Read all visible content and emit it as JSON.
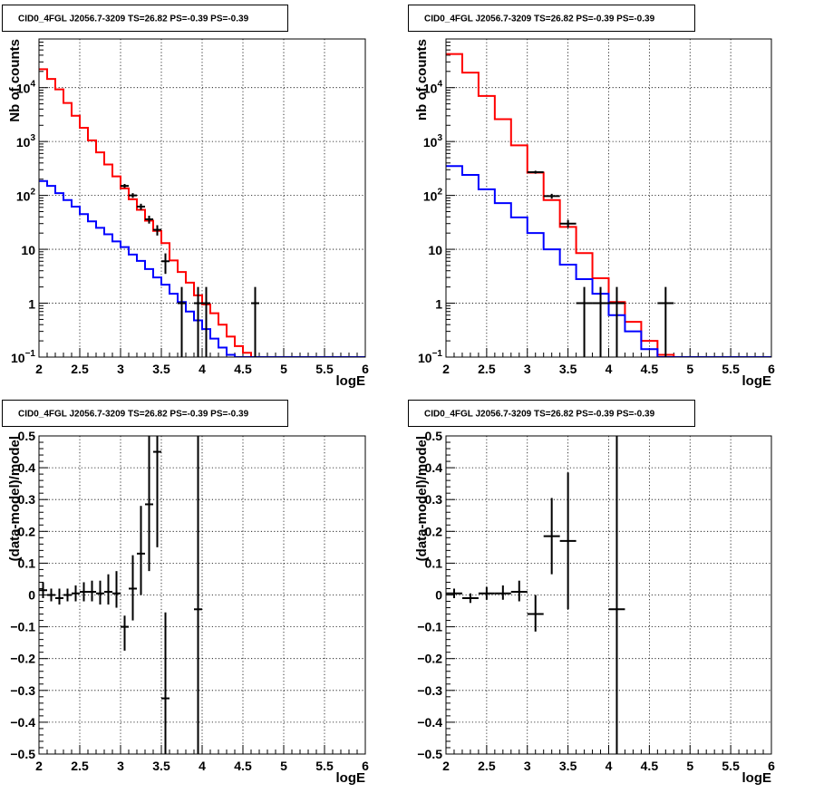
{
  "colors": {
    "model_total": "#ff0000",
    "model_background": "#0000ff",
    "data": "#000000",
    "grid": "#000000",
    "frame": "#000000"
  },
  "chart_data": [
    {
      "id": "counts-left",
      "type": "line",
      "title": "CID0_4FGL J2056.7-3209 TS=26.82 PS=-0.39 PS=-0.39",
      "xlabel": "logE",
      "ylabel": "Nb of counts",
      "xlim": [
        2,
        6
      ],
      "ylim": [
        0.1,
        80000
      ],
      "yscale": "log",
      "grid": true,
      "x_ticks": [
        "2",
        "2.5",
        "3",
        "3.5",
        "4",
        "4.5",
        "5",
        "5.5",
        "6"
      ],
      "y_ticks": [
        {
          "v": 0.1,
          "mant": "10",
          "exp": "−1"
        },
        {
          "v": 1,
          "mant": "1",
          "exp": ""
        },
        {
          "v": 10,
          "mant": "10",
          "exp": ""
        },
        {
          "v": 100,
          "mant": "10",
          "exp": "2"
        },
        {
          "v": 1000,
          "mant": "10",
          "exp": "3"
        },
        {
          "v": 10000,
          "mant": "10",
          "exp": "4"
        }
      ],
      "series": [
        {
          "kind": "step",
          "color": "#ff0000",
          "edges": [
            2,
            2.1,
            2.2,
            2.3,
            2.4,
            2.5,
            2.6,
            2.7,
            2.8,
            2.9,
            3.0,
            3.1,
            3.2,
            3.3,
            3.4,
            3.5,
            3.6,
            3.7,
            3.8,
            3.9,
            4.0,
            4.1,
            4.2,
            4.3,
            4.4,
            4.5,
            4.6,
            4.7,
            4.8,
            4.9,
            5.0,
            5.1,
            5.2,
            5.3,
            5.4,
            5.5,
            5.6,
            5.7,
            5.8,
            5.9,
            6.0
          ],
          "values": [
            22000,
            14500,
            9300,
            5200,
            3000,
            1800,
            1050,
            630,
            375,
            225,
            135,
            85,
            54,
            34,
            22,
            13,
            6.2,
            3.8,
            2.4,
            1.4,
            0.95,
            0.65,
            0.4,
            0.24,
            0.16,
            0.12,
            0.1,
            0.1,
            0.1,
            0.1,
            0.1,
            0.1,
            0.1,
            0.1,
            0.1,
            0.1,
            0.1,
            0.1,
            0.1,
            0.1
          ]
        },
        {
          "kind": "step",
          "color": "#0000ff",
          "edges": [
            2,
            2.1,
            2.2,
            2.3,
            2.4,
            2.5,
            2.6,
            2.7,
            2.8,
            2.9,
            3.0,
            3.1,
            3.2,
            3.3,
            3.4,
            3.5,
            3.6,
            3.7,
            3.8,
            3.9,
            4.0,
            4.1,
            4.2,
            4.3,
            4.4,
            4.5,
            4.6,
            4.7,
            4.8,
            4.9,
            5.0,
            5.1,
            5.2,
            5.3,
            5.4,
            5.5,
            5.6,
            5.7,
            5.8,
            5.9,
            6.0
          ],
          "values": [
            185,
            150,
            110,
            82,
            62,
            45,
            33,
            25,
            19,
            14,
            11,
            8,
            6.1,
            4.3,
            3.0,
            2.2,
            1.5,
            1.05,
            0.7,
            0.48,
            0.33,
            0.22,
            0.15,
            0.11,
            0.1,
            0.1,
            0.1,
            0.1,
            0.1,
            0.1,
            0.1,
            0.1,
            0.1,
            0.1,
            0.1,
            0.1,
            0.1,
            0.1,
            0.1,
            0.1
          ]
        },
        {
          "kind": "errorbar",
          "color": "#000000",
          "points": [
            {
              "x": 3.05,
              "y": 150,
              "xerr": 0.05,
              "ylo": 138,
              "yhi": 163
            },
            {
              "x": 3.15,
              "y": 100,
              "xerr": 0.05,
              "ylo": 90,
              "yhi": 110
            },
            {
              "x": 3.25,
              "y": 62,
              "xerr": 0.05,
              "ylo": 54,
              "yhi": 70
            },
            {
              "x": 3.35,
              "y": 36,
              "xerr": 0.05,
              "ylo": 30,
              "yhi": 42
            },
            {
              "x": 3.45,
              "y": 23,
              "xerr": 0.05,
              "ylo": 18,
              "yhi": 28
            },
            {
              "x": 3.55,
              "y": 6,
              "xerr": 0.05,
              "ylo": 3.5,
              "yhi": 8.4
            },
            {
              "x": 3.75,
              "y": 1,
              "xerr": 0.05,
              "ylo": 0.1,
              "yhi": 2
            },
            {
              "x": 3.95,
              "y": 1,
              "xerr": 0.05,
              "ylo": 0.1,
              "yhi": 2
            },
            {
              "x": 4.05,
              "y": 1,
              "xerr": 0.05,
              "ylo": 0.1,
              "yhi": 2
            },
            {
              "x": 4.65,
              "y": 1,
              "xerr": 0.05,
              "ylo": 0.1,
              "yhi": 2
            }
          ]
        }
      ]
    },
    {
      "id": "counts-right",
      "type": "line",
      "title": "CID0_4FGL J2056.7-3209 TS=26.82 PS=-0.39 PS=-0.39",
      "xlabel": "logE",
      "ylabel": "nb of counts",
      "xlim": [
        2,
        6
      ],
      "ylim": [
        0.1,
        80000
      ],
      "yscale": "log",
      "grid": true,
      "x_ticks": [
        "2",
        "2.5",
        "3",
        "3.5",
        "4",
        "4.5",
        "5",
        "5.5",
        "6"
      ],
      "y_ticks": [
        {
          "v": 0.1,
          "mant": "10",
          "exp": "−1"
        },
        {
          "v": 1,
          "mant": "1",
          "exp": ""
        },
        {
          "v": 10,
          "mant": "10",
          "exp": ""
        },
        {
          "v": 100,
          "mant": "10",
          "exp": "2"
        },
        {
          "v": 1000,
          "mant": "10",
          "exp": "3"
        },
        {
          "v": 10000,
          "mant": "10",
          "exp": "4"
        }
      ],
      "series": [
        {
          "kind": "step",
          "color": "#ff0000",
          "edges": [
            2,
            2.2,
            2.4,
            2.6,
            2.8,
            3.0,
            3.2,
            3.4,
            3.6,
            3.8,
            4.0,
            4.2,
            4.4,
            4.6,
            4.8,
            5.0,
            5.2,
            5.4,
            5.6,
            5.8,
            6.0
          ],
          "values": [
            42000,
            19000,
            7000,
            2600,
            850,
            265,
            82,
            26,
            8.5,
            2.9,
            1.05,
            0.45,
            0.2,
            0.11,
            0.1,
            0.1,
            0.1,
            0.1,
            0.1,
            0.1
          ]
        },
        {
          "kind": "step",
          "color": "#0000ff",
          "edges": [
            2,
            2.2,
            2.4,
            2.6,
            2.8,
            3.0,
            3.2,
            3.4,
            3.6,
            3.8,
            4.0,
            4.2,
            4.4,
            4.6,
            4.8,
            5.0,
            5.2,
            5.4,
            5.6,
            5.8,
            6.0
          ],
          "values": [
            350,
            240,
            130,
            72,
            39,
            20,
            10,
            5.2,
            2.8,
            1.5,
            0.6,
            0.3,
            0.14,
            0.1,
            0.1,
            0.1,
            0.1,
            0.1,
            0.1,
            0.1
          ]
        },
        {
          "kind": "errorbar",
          "color": "#000000",
          "points": [
            {
              "x": 3.1,
              "y": 270,
              "xerr": 0.1,
              "ylo": 253,
              "yhi": 287
            },
            {
              "x": 3.3,
              "y": 97,
              "xerr": 0.1,
              "ylo": 87,
              "yhi": 107
            },
            {
              "x": 3.5,
              "y": 30,
              "xerr": 0.1,
              "ylo": 25,
              "yhi": 35
            },
            {
              "x": 3.7,
              "y": 1,
              "xerr": 0.1,
              "ylo": 0.1,
              "yhi": 2
            },
            {
              "x": 3.9,
              "y": 1,
              "xerr": 0.1,
              "ylo": 0.1,
              "yhi": 2
            },
            {
              "x": 4.1,
              "y": 1,
              "xerr": 0.1,
              "ylo": 0.1,
              "yhi": 2
            },
            {
              "x": 4.7,
              "y": 1,
              "xerr": 0.1,
              "ylo": 0.1,
              "yhi": 2
            }
          ]
        }
      ]
    },
    {
      "id": "residual-left",
      "type": "scatter",
      "title": "CID0_4FGL J2056.7-3209 TS=26.82 PS=-0.39 PS=-0.39",
      "xlabel": "logE",
      "ylabel": "(data-model)/model",
      "xlim": [
        2,
        6
      ],
      "ylim": [
        -0.5,
        0.5
      ],
      "yscale": "linear",
      "grid": true,
      "x_ticks": [
        "2",
        "2.5",
        "3",
        "3.5",
        "4",
        "4.5",
        "5",
        "5.5",
        "6"
      ],
      "y_ticks": [
        "−0.5",
        "−0.4",
        "−0.3",
        "−0.2",
        "−0.1",
        "0",
        "0.1",
        "0.2",
        "0.3",
        "0.4",
        "0.5"
      ],
      "series": [
        {
          "kind": "errorbar",
          "color": "#000000",
          "points": [
            {
              "x": 2.05,
              "y": 0.015,
              "xerr": 0.05,
              "ylo": -0.01,
              "yhi": 0.04
            },
            {
              "x": 2.15,
              "y": 0.0,
              "xerr": 0.05,
              "ylo": -0.02,
              "yhi": 0.02
            },
            {
              "x": 2.25,
              "y": -0.01,
              "xerr": 0.05,
              "ylo": -0.03,
              "yhi": 0.02
            },
            {
              "x": 2.35,
              "y": 0.0,
              "xerr": 0.05,
              "ylo": -0.02,
              "yhi": 0.02
            },
            {
              "x": 2.45,
              "y": 0.005,
              "xerr": 0.05,
              "ylo": -0.02,
              "yhi": 0.03
            },
            {
              "x": 2.55,
              "y": 0.01,
              "xerr": 0.05,
              "ylo": -0.02,
              "yhi": 0.04
            },
            {
              "x": 2.65,
              "y": 0.01,
              "xerr": 0.05,
              "ylo": -0.02,
              "yhi": 0.045
            },
            {
              "x": 2.75,
              "y": 0.005,
              "xerr": 0.05,
              "ylo": -0.03,
              "yhi": 0.045
            },
            {
              "x": 2.85,
              "y": 0.01,
              "xerr": 0.05,
              "ylo": -0.03,
              "yhi": 0.065
            },
            {
              "x": 2.95,
              "y": 0.005,
              "xerr": 0.05,
              "ylo": -0.04,
              "yhi": 0.075
            },
            {
              "x": 3.05,
              "y": -0.1,
              "xerr": 0.05,
              "ylo": -0.175,
              "yhi": -0.065
            },
            {
              "x": 3.15,
              "y": 0.02,
              "xerr": 0.05,
              "ylo": -0.08,
              "yhi": 0.125
            },
            {
              "x": 3.25,
              "y": 0.13,
              "xerr": 0.05,
              "ylo": 0.0,
              "yhi": 0.28
            },
            {
              "x": 3.35,
              "y": 0.285,
              "xerr": 0.05,
              "ylo": 0.075,
              "yhi": 0.5
            },
            {
              "x": 3.45,
              "y": 0.45,
              "xerr": 0.05,
              "ylo": 0.15,
              "yhi": 0.5
            },
            {
              "x": 3.55,
              "y": -0.325,
              "xerr": 0.05,
              "ylo": -0.5,
              "yhi": -0.055
            },
            {
              "x": 3.95,
              "y": -0.045,
              "xerr": 0.05,
              "ylo": -0.5,
              "yhi": 0.5
            }
          ]
        }
      ]
    },
    {
      "id": "residual-right",
      "type": "scatter",
      "title": "CID0_4FGL J2056.7-3209 TS=26.82 PS=-0.39 PS=-0.39",
      "xlabel": "logE",
      "ylabel": "(data-model)/model",
      "xlim": [
        2,
        6
      ],
      "ylim": [
        -0.5,
        0.5
      ],
      "yscale": "linear",
      "grid": true,
      "x_ticks": [
        "2",
        "2.5",
        "3",
        "3.5",
        "4",
        "4.5",
        "5",
        "5.5",
        "6"
      ],
      "y_ticks": [
        "−0.5",
        "−0.4",
        "−0.3",
        "−0.2",
        "−0.1",
        "0",
        "0.1",
        "0.2",
        "0.3",
        "0.4",
        "0.5"
      ],
      "series": [
        {
          "kind": "errorbar",
          "color": "#000000",
          "points": [
            {
              "x": 2.1,
              "y": 0.005,
              "xerr": 0.1,
              "ylo": -0.01,
              "yhi": 0.02
            },
            {
              "x": 2.3,
              "y": -0.01,
              "xerr": 0.1,
              "ylo": -0.025,
              "yhi": 0.005
            },
            {
              "x": 2.5,
              "y": 0.005,
              "xerr": 0.1,
              "ylo": -0.015,
              "yhi": 0.025
            },
            {
              "x": 2.7,
              "y": 0.005,
              "xerr": 0.1,
              "ylo": -0.015,
              "yhi": 0.03
            },
            {
              "x": 2.9,
              "y": 0.01,
              "xerr": 0.1,
              "ylo": -0.02,
              "yhi": 0.045
            },
            {
              "x": 3.1,
              "y": -0.06,
              "xerr": 0.1,
              "ylo": -0.115,
              "yhi": 0.0
            },
            {
              "x": 3.3,
              "y": 0.185,
              "xerr": 0.1,
              "ylo": 0.065,
              "yhi": 0.305
            },
            {
              "x": 3.5,
              "y": 0.17,
              "xerr": 0.1,
              "ylo": -0.045,
              "yhi": 0.385
            },
            {
              "x": 4.1,
              "y": -0.045,
              "xerr": 0.1,
              "ylo": -0.5,
              "yhi": 0.5
            }
          ]
        }
      ]
    }
  ]
}
